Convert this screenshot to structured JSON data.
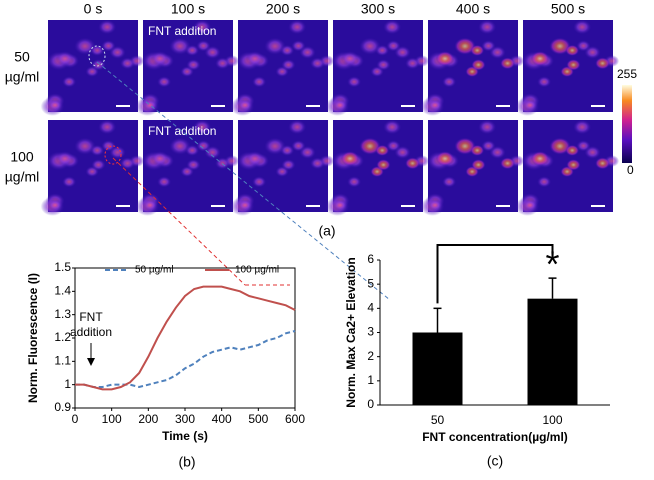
{
  "figure": {
    "time_labels": [
      "0 s",
      "100 s",
      "200 s",
      "300 s",
      "400 s",
      "500 s"
    ],
    "row_labels": [
      [
        "50",
        "µg/ml"
      ],
      [
        "100",
        "µg/ml"
      ]
    ],
    "image_annotation": "FNT addition",
    "colorbar": {
      "lim": [
        0,
        255
      ],
      "ticks": [
        0,
        255
      ]
    },
    "panel_labels": [
      "(a)",
      "(b)",
      "(c)"
    ]
  },
  "chart_data": [
    {
      "type": "line",
      "x_label": "Time (s)",
      "y_label": "Norm. Fluorescence (I)",
      "annotation": [
        "FNT",
        "addition"
      ],
      "x": [
        0,
        25,
        50,
        75,
        100,
        125,
        150,
        175,
        200,
        225,
        250,
        275,
        300,
        325,
        350,
        375,
        400,
        425,
        450,
        475,
        500,
        525,
        550,
        575,
        600
      ],
      "series": [
        {
          "name": "50 µg/ml",
          "color": "#4f81bd",
          "dashed": true,
          "values": [
            1.0,
            1.0,
            0.99,
            0.99,
            1.0,
            1.0,
            1.0,
            0.99,
            1.0,
            1.01,
            1.02,
            1.04,
            1.07,
            1.09,
            1.12,
            1.14,
            1.15,
            1.16,
            1.15,
            1.16,
            1.17,
            1.19,
            1.2,
            1.22,
            1.23
          ]
        },
        {
          "name": "100 µg/ml",
          "color": "#c0504d",
          "dashed": false,
          "values": [
            1.0,
            1.0,
            0.99,
            0.98,
            0.98,
            0.99,
            1.01,
            1.05,
            1.12,
            1.2,
            1.27,
            1.33,
            1.38,
            1.41,
            1.42,
            1.42,
            1.42,
            1.41,
            1.4,
            1.38,
            1.37,
            1.36,
            1.35,
            1.34,
            1.32
          ]
        }
      ],
      "xlim": [
        0,
        600
      ],
      "xticks": [
        0,
        100,
        200,
        300,
        400,
        500,
        600
      ],
      "ylim": [
        0.9,
        1.5
      ],
      "yticks": [
        0.9,
        1,
        1.1,
        1.2,
        1.3,
        1.4,
        1.5
      ]
    },
    {
      "type": "bar",
      "x_label": "FNT concentration(µg/ml)",
      "y_label": "Norm. Max Ca2+ Elevation",
      "categories": [
        "50",
        "100"
      ],
      "values": [
        3.0,
        4.4
      ],
      "errors": [
        1.0,
        0.85
      ],
      "color": "#000000",
      "significance": "*",
      "ylim": [
        0,
        6
      ],
      "yticks": [
        0,
        1,
        2,
        3,
        4,
        5,
        6
      ]
    }
  ]
}
